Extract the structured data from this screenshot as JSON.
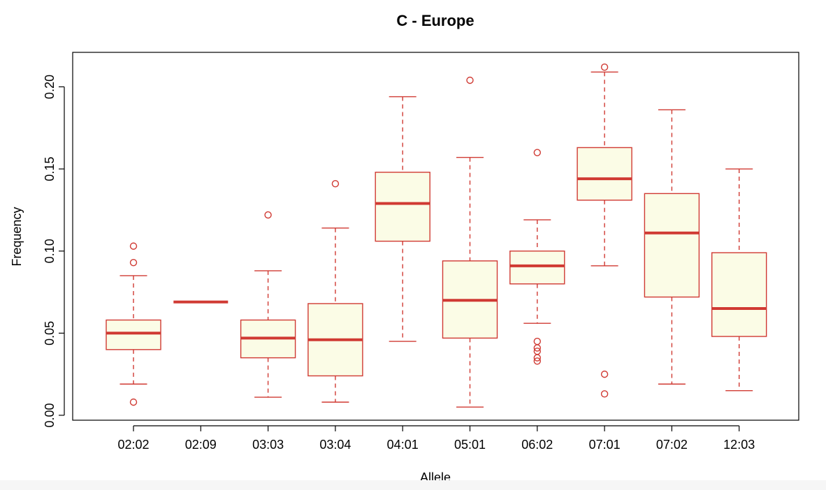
{
  "chart_data": {
    "type": "boxplot",
    "title": "C - Europe",
    "xlabel": "Allele",
    "ylabel": "Frequency",
    "ylim": [
      -0.003,
      0.221
    ],
    "y_ticks": [
      0.0,
      0.05,
      0.1,
      0.15,
      0.2
    ],
    "y_tick_labels": [
      "0.00",
      "0.05",
      "0.10",
      "0.15",
      "0.20"
    ],
    "categories": [
      "02:02",
      "02:09",
      "03:03",
      "03:04",
      "04:01",
      "05:01",
      "06:02",
      "07:01",
      "07:02",
      "12:03"
    ],
    "boxes": [
      {
        "label": "02:02",
        "whisker_low": 0.019,
        "q1": 0.04,
        "median": 0.05,
        "q3": 0.058,
        "whisker_high": 0.085,
        "outliers": [
          0.103,
          0.093,
          0.008
        ]
      },
      {
        "label": "02:09",
        "whisker_low": 0.069,
        "q1": 0.069,
        "median": 0.069,
        "q3": 0.069,
        "whisker_high": 0.069,
        "outliers": []
      },
      {
        "label": "03:03",
        "whisker_low": 0.011,
        "q1": 0.035,
        "median": 0.047,
        "q3": 0.058,
        "whisker_high": 0.088,
        "outliers": [
          0.122
        ]
      },
      {
        "label": "03:04",
        "whisker_low": 0.008,
        "q1": 0.024,
        "median": 0.046,
        "q3": 0.068,
        "whisker_high": 0.114,
        "outliers": [
          0.141
        ]
      },
      {
        "label": "04:01",
        "whisker_low": 0.045,
        "q1": 0.106,
        "median": 0.129,
        "q3": 0.148,
        "whisker_high": 0.194,
        "outliers": []
      },
      {
        "label": "05:01",
        "whisker_low": 0.005,
        "q1": 0.047,
        "median": 0.07,
        "q3": 0.094,
        "whisker_high": 0.157,
        "outliers": [
          0.204
        ]
      },
      {
        "label": "06:02",
        "whisker_low": 0.056,
        "q1": 0.08,
        "median": 0.091,
        "q3": 0.1,
        "whisker_high": 0.119,
        "outliers": [
          0.16,
          0.045,
          0.041,
          0.039,
          0.035,
          0.033
        ]
      },
      {
        "label": "07:01",
        "whisker_low": 0.091,
        "q1": 0.131,
        "median": 0.144,
        "q3": 0.163,
        "whisker_high": 0.209,
        "outliers": [
          0.212,
          0.025,
          0.013
        ]
      },
      {
        "label": "07:02",
        "whisker_low": 0.019,
        "q1": 0.072,
        "median": 0.111,
        "q3": 0.135,
        "whisker_high": 0.186,
        "outliers": []
      },
      {
        "label": "12:03",
        "whisker_low": 0.015,
        "q1": 0.048,
        "median": 0.065,
        "q3": 0.099,
        "whisker_high": 0.15,
        "outliers": []
      }
    ],
    "colors": {
      "border": "#d03a33",
      "fill": "#fbfce6",
      "axis": "#000000",
      "background": "#ffffff"
    },
    "grid": false,
    "legend": "none"
  }
}
